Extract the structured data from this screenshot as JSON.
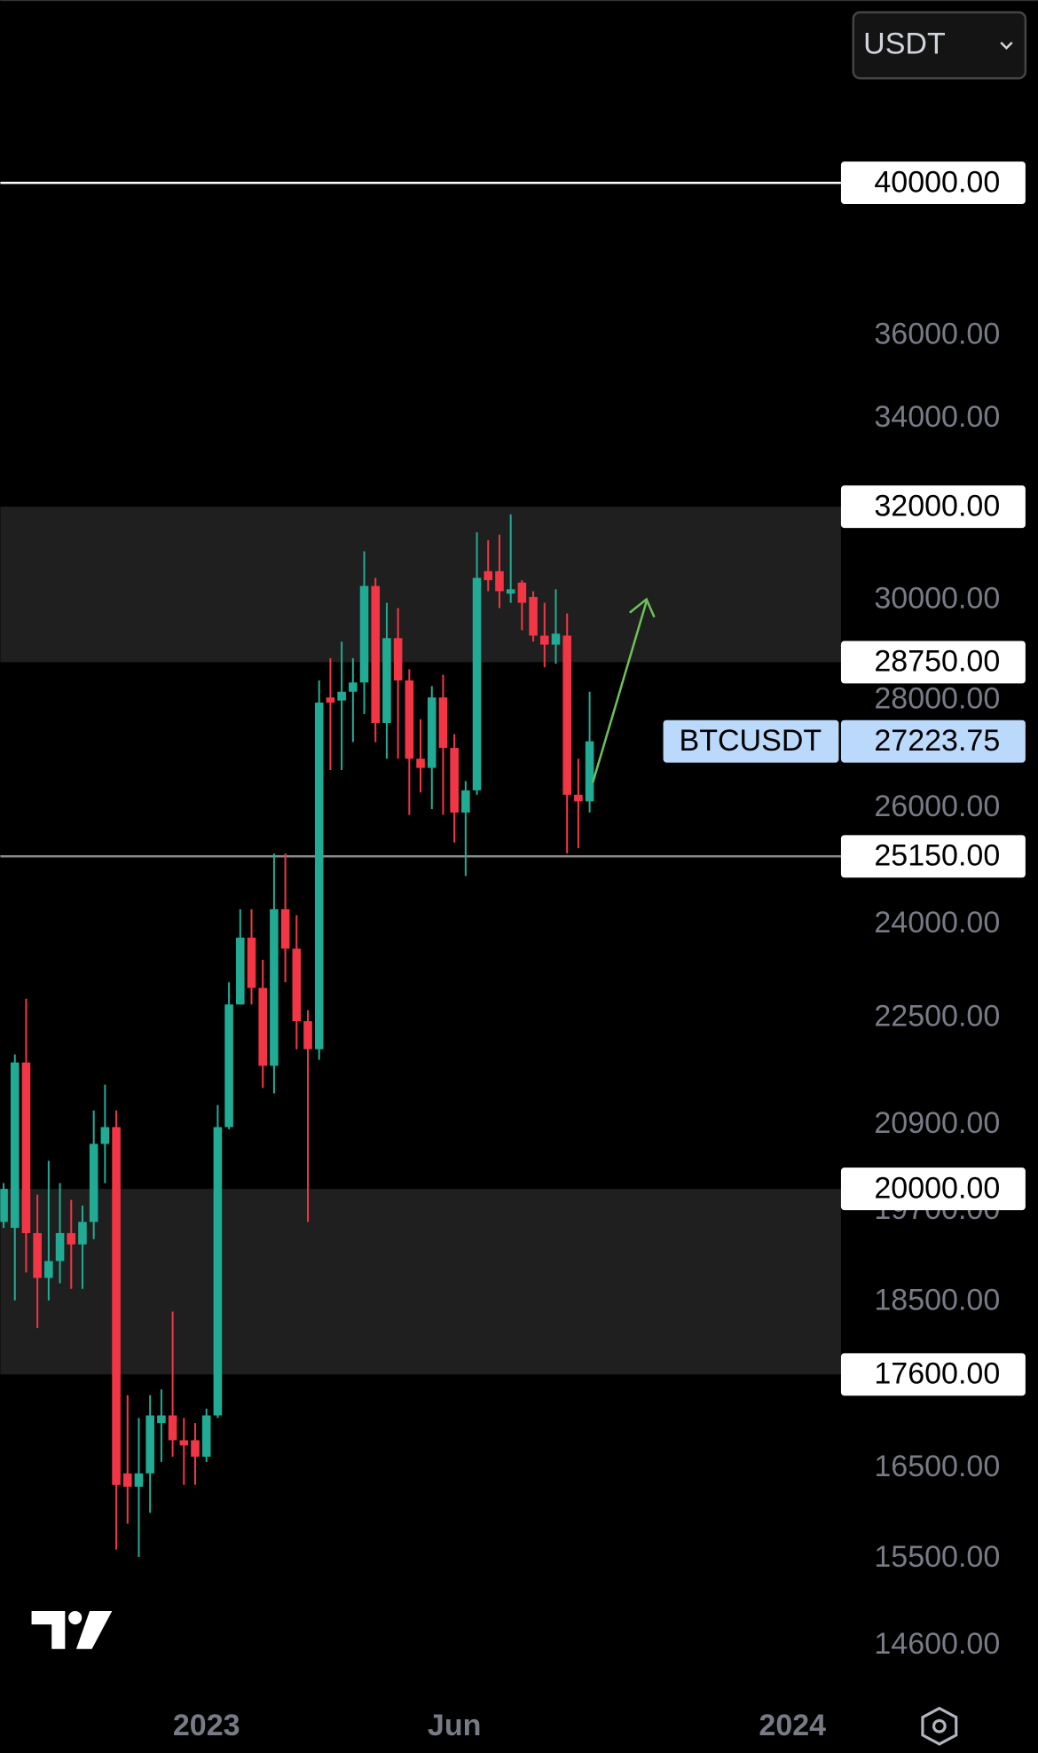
{
  "chart_data": {
    "type": "candlestick",
    "symbol": "BTCUSDT",
    "currency": "USDT",
    "log_scale": true,
    "colors": {
      "up": "#22ab94",
      "down": "#f23645",
      "zone": "#1f1f1f",
      "level": "#ffffff",
      "support": "#8a8a8a",
      "price_label": "#bbd9fb"
    },
    "ylim": [
      14070,
      45370
    ],
    "yticks": [
      {
        "value": 36000,
        "label": "36000.00"
      },
      {
        "value": 34000,
        "label": "34000.00"
      },
      {
        "value": 30000,
        "label": "30000.00"
      },
      {
        "value": 28000,
        "label": "28000.00"
      },
      {
        "value": 26000,
        "label": "26000.00"
      },
      {
        "value": 24000,
        "label": "24000.00"
      },
      {
        "value": 22500,
        "label": "22500.00"
      },
      {
        "value": 20900,
        "label": "20900.00"
      },
      {
        "value": 19700,
        "label": "19700.00"
      },
      {
        "value": 18500,
        "label": "18500.00"
      },
      {
        "value": 16500,
        "label": "16500.00"
      },
      {
        "value": 15500,
        "label": "15500.00"
      },
      {
        "value": 14600,
        "label": "14600.00"
      }
    ],
    "levels": [
      {
        "value": 40000,
        "label": "40000.00",
        "style": "level"
      },
      {
        "value": 25150,
        "label": "25150.00",
        "style": "support"
      }
    ],
    "zones": [
      {
        "high": {
          "value": 32000,
          "label": "32000.00"
        },
        "low": {
          "value": 28750,
          "label": "28750.00"
        }
      },
      {
        "high": {
          "value": 20000,
          "label": "20000.00"
        },
        "low": {
          "value": 17600,
          "label": "17600.00"
        }
      }
    ],
    "categories": [
      null,
      null,
      null,
      null,
      null,
      null,
      null,
      null,
      null,
      null,
      null,
      null,
      null,
      null,
      null,
      null,
      null,
      null,
      "2023",
      null,
      null,
      null,
      null,
      null,
      null,
      null,
      null,
      null,
      null,
      null,
      null,
      null,
      null,
      null,
      null,
      null,
      null,
      null,
      null,
      null,
      "Jun",
      null,
      null,
      null,
      null,
      null,
      null,
      null,
      null,
      null,
      null,
      null,
      null,
      null,
      null,
      null,
      null,
      null,
      null,
      null,
      null,
      null,
      null,
      null,
      null,
      null,
      null,
      null,
      null,
      null,
      "2024",
      null,
      null,
      null,
      null
    ],
    "open": [
      19550,
      19470,
      21820,
      19400,
      18810,
      19030,
      19400,
      19250,
      19550,
      20630,
      20870,
      16440,
      16290,
      16440,
      17020,
      17110,
      16820,
      16820,
      16630,
      17110,
      20870,
      22710,
      23780,
      22970,
      21770,
      24250,
      23600,
      22450,
      22020,
      28060,
      28000,
      28170,
      28350,
      30300,
      27570,
      29230,
      28390,
      26900,
      26730,
      28060,
      27100,
      25920,
      26320,
      30610,
      30610,
      30140,
      30370,
      30070,
      29280,
      29100,
      29280,
      26240,
      26120,
      null,
      null,
      null,
      null,
      null,
      null,
      null,
      null,
      null,
      null,
      null,
      null,
      null,
      null,
      null,
      null,
      null,
      null,
      null,
      null,
      null,
      null
    ],
    "high": [
      20080,
      21940,
      22800,
      19920,
      20390,
      20080,
      19850,
      19770,
      21110,
      21490,
      21110,
      17350,
      17080,
      17350,
      17420,
      18380,
      17080,
      17020,
      17190,
      21190,
      23060,
      24250,
      24250,
      23420,
      25200,
      25200,
      24150,
      22620,
      28390,
      28830,
      29160,
      28830,
      31030,
      30470,
      29950,
      29840,
      28610,
      27640,
      28280,
      28500,
      27360,
      26490,
      31440,
      31270,
      31390,
      31830,
      30420,
      30190,
      29950,
      30230,
      29730,
      26900,
      28170,
      null,
      null,
      null,
      null,
      null,
      null,
      null,
      null,
      null,
      null,
      null,
      null,
      null,
      null,
      null,
      null,
      null,
      null,
      null,
      null,
      null,
      null
    ],
    "low": [
      19470,
      18520,
      18880,
      18170,
      18520,
      18740,
      18670,
      18670,
      19320,
      20080,
      15600,
      15880,
      15520,
      16000,
      16570,
      16630,
      16310,
      16310,
      16570,
      17080,
      20840,
      22710,
      22710,
      21440,
      21360,
      23060,
      22020,
      19550,
      21860,
      26690,
      26690,
      27210,
      27740,
      27210,
      26900,
      26900,
      25880,
      26280,
      25980,
      25880,
      25390,
      24810,
      26240,
      30190,
      29840,
      29950,
      29390,
      29160,
      28650,
      28720,
      25200,
      25290,
      25920,
      null,
      null,
      null,
      null,
      null,
      null,
      null,
      null,
      null,
      null,
      null,
      null,
      null,
      null,
      null,
      null,
      null,
      null,
      null,
      null,
      null,
      null
    ],
    "close": [
      20000,
      21820,
      19400,
      18810,
      19030,
      19400,
      19250,
      19550,
      20630,
      20870,
      16310,
      16290,
      16440,
      17110,
      17110,
      16820,
      16760,
      16630,
      17110,
      20870,
      22710,
      23780,
      22970,
      21770,
      24250,
      23600,
      22450,
      22020,
      27960,
      27960,
      28170,
      28350,
      30300,
      27570,
      29230,
      28390,
      26900,
      26730,
      28060,
      27100,
      25920,
      26320,
      30470,
      30420,
      30190,
      30230,
      29950,
      29280,
      29100,
      29320,
      26240,
      26120,
      27223.75,
      null,
      null,
      null,
      null,
      null,
      null,
      null,
      null,
      null,
      null,
      null,
      null,
      null,
      null,
      null,
      null,
      null,
      null,
      null,
      null,
      null,
      null
    ]
  }
}
